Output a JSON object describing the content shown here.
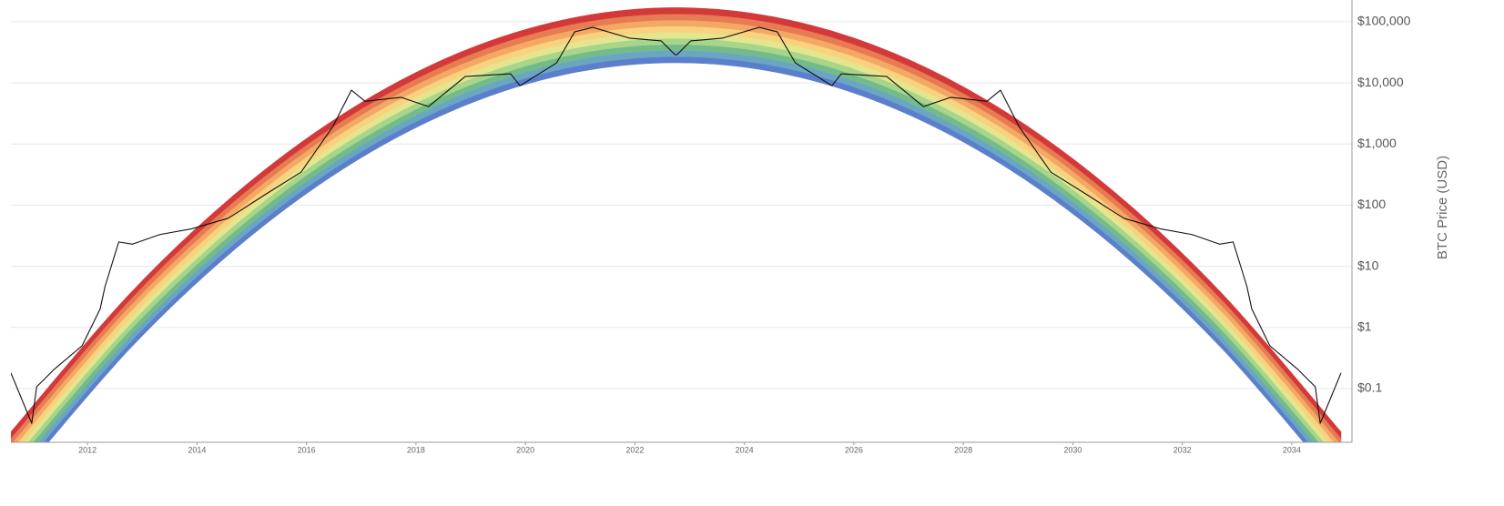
{
  "chart_data": {
    "type": "rainbow",
    "y_label": "BTC Price (USD)",
    "log_y": true,
    "grid": true,
    "xlim": [
      2010.6,
      2035.1
    ],
    "ylim": [
      0.0132,
      227000
    ],
    "xticks": [
      2012,
      2014,
      2016,
      2018,
      2020,
      2022,
      2024,
      2026,
      2028,
      2030,
      2032,
      2034
    ],
    "yticks": [
      {
        "value": 0.1,
        "label": "$0.1"
      },
      {
        "value": 1,
        "label": "$1"
      },
      {
        "value": 10,
        "label": "$10"
      },
      {
        "value": 100,
        "label": "$100"
      },
      {
        "value": 1000,
        "label": "$1,000"
      },
      {
        "value": 10000,
        "label": "$10,000"
      },
      {
        "value": 100000,
        "label": "$100,000"
      }
    ],
    "x": [
      2010.6,
      2012.75,
      2014.75,
      2016.75,
      2018.75,
      2020.75,
      2022.75,
      2024.75,
      2026.75,
      2028.75,
      2030.75,
      2032.75,
      2034.9
    ],
    "band_floor": [
      0.00245,
      0.427,
      21.0,
      435,
      3780,
      13900,
      21400,
      13900,
      3780,
      435,
      21.0,
      0.427,
      0.00245
    ],
    "series": [
      {
        "color": "#5b7fcb",
        "values": [
          0.00309,
          0.537,
          26.4,
          547,
          4760,
          17500,
          26900,
          17500,
          4760,
          547,
          26.4,
          0.537,
          0.00309
        ]
      },
      {
        "color": "#6aa6c4",
        "values": [
          0.00389,
          0.676,
          33.3,
          689,
          6000,
          22000,
          33900,
          22000,
          6000,
          689,
          33.3,
          0.676,
          0.00389
        ]
      },
      {
        "color": "#73bb8b",
        "values": [
          0.0049,
          0.851,
          41.9,
          867,
          7550,
          27700,
          42700,
          27700,
          7550,
          867,
          41.9,
          0.851,
          0.0049
        ]
      },
      {
        "color": "#a7d58a",
        "values": [
          0.00617,
          1.07,
          52.7,
          1090,
          9510,
          34800,
          53700,
          34800,
          9510,
          1090,
          52.7,
          1.07,
          0.00617
        ]
      },
      {
        "color": "#e3e68f",
        "values": [
          0.00776,
          1.35,
          66.4,
          1370,
          12000,
          43900,
          67600,
          43900,
          12000,
          1370,
          66.4,
          1.35,
          0.00776
        ]
      },
      {
        "color": "#f8d27f",
        "values": [
          0.00977,
          1.7,
          83.6,
          1730,
          15100,
          55200,
          85100,
          55200,
          15100,
          1730,
          83.6,
          1.7,
          0.00977
        ]
      },
      {
        "color": "#f3a865",
        "values": [
          0.0123,
          2.14,
          105,
          2180,
          19000,
          69500,
          107000,
          69500,
          19000,
          2180,
          105,
          2.14,
          0.0123
        ]
      },
      {
        "color": "#e77b52",
        "values": [
          0.0155,
          2.69,
          132,
          2740,
          23900,
          87500,
          135000,
          87500,
          23900,
          2740,
          132,
          2.69,
          0.0155
        ]
      },
      {
        "color": "#d4393a",
        "values": [
          0.0195,
          3.39,
          167,
          3450,
          30100,
          110000,
          170000,
          110000,
          30100,
          3450,
          167,
          3.39,
          0.0195
        ]
      }
    ],
    "price": {
      "color": "#111111",
      "x": [
        2010.6,
        2010.98,
        2011.07,
        2011.4,
        2011.9,
        2012.23,
        2012.32,
        2012.57,
        2012.82,
        2013.32,
        2013.9,
        2014.57,
        2015.23,
        2015.9,
        2016.48,
        2016.82,
        2017.07,
        2017.73,
        2018.23,
        2018.9,
        2019.73,
        2019.9,
        2020.57,
        2020.9,
        2021.23,
        2021.9,
        2022.48,
        2022.73,
        2022.77,
        2023.02,
        2023.6,
        2024.27,
        2024.6,
        2024.93,
        2025.6,
        2025.77,
        2026.6,
        2027.27,
        2027.77,
        2028.43,
        2028.68,
        2029.02,
        2029.6,
        2030.27,
        2030.93,
        2031.6,
        2032.18,
        2032.68,
        2032.93,
        2033.18,
        2033.27,
        2033.6,
        2034.1,
        2034.43,
        2034.52,
        2034.9
      ],
      "values": [
        0.18,
        0.027,
        0.107,
        0.21,
        0.5,
        2.0,
        4.7,
        25,
        23,
        33,
        41,
        61,
        146,
        346,
        1920,
        7600,
        5000,
        5800,
        4100,
        12700,
        14100,
        9000,
        21300,
        68500,
        81000,
        54000,
        48600,
        29000,
        29000,
        48600,
        54000,
        81000,
        68500,
        21300,
        9000,
        14100,
        12700,
        4100,
        5800,
        5000,
        7600,
        1920,
        346,
        146,
        61,
        41,
        33,
        23,
        25,
        4.7,
        2.0,
        0.5,
        0.21,
        0.107,
        0.027,
        0.18
      ]
    }
  }
}
